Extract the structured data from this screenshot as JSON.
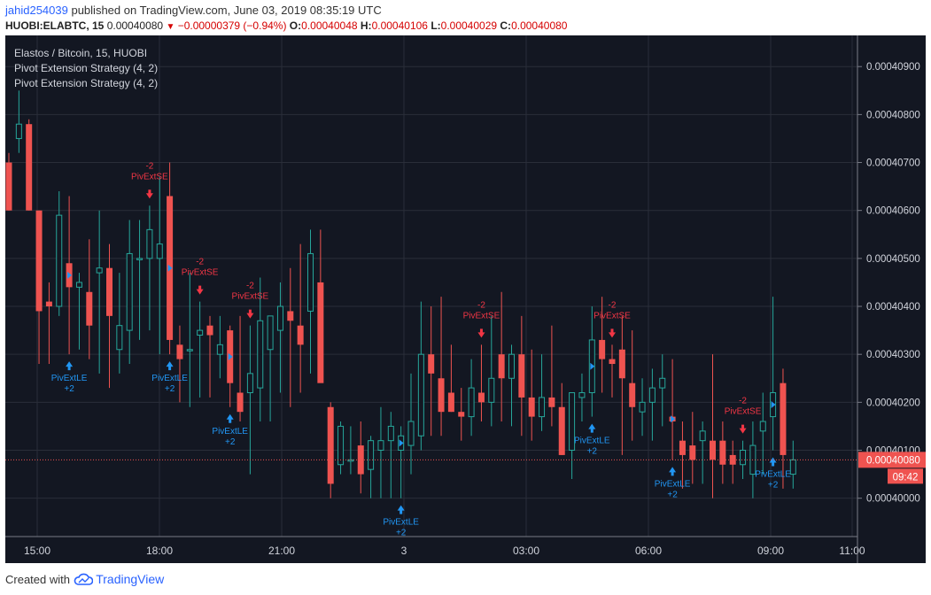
{
  "header": {
    "user": "jahid254039",
    "published": " published on TradingView.com, June 03, 2019 08:35:19 UTC",
    "symbol": "HUOBI:ELABTC, 15",
    "last": "0.00040080",
    "change": "−0.00000379 (−0.94%)",
    "o_label": "O:",
    "o": "0.00040048",
    "h_label": "H:",
    "h": "0.00040106",
    "l_label": "L:",
    "l": "0.00040029",
    "c_label": "C:",
    "c": "0.00040080"
  },
  "legend": {
    "title": "Elastos / Bitcoin, 15, HUOBI",
    "strategy1": "Pivot Extension Strategy (4, 2)",
    "strategy2": "Pivot Extension Strategy (4, 2)"
  },
  "price_label": "0.00040080",
  "countdown": "09:42",
  "footer": {
    "created": "Created with",
    "brand": "TradingView"
  },
  "colors": {
    "bg": "#131722",
    "grid": "#2a2e39",
    "up": "#26a69a",
    "down": "#ef5350",
    "long": "#2196f3",
    "short": "#f23645",
    "axis_text": "#d1d4dc"
  },
  "chart_data": {
    "type": "candlestick",
    "y_ticks": [
      "0.00040900",
      "0.00040800",
      "0.00040700",
      "0.00040600",
      "0.00040500",
      "0.00040400",
      "0.00040300",
      "0.00040200",
      "0.00040100",
      "0.00040000"
    ],
    "x_ticks": [
      "15:00",
      "18:00",
      "21:00",
      "3",
      "03:00",
      "06:00",
      "09:00",
      "11:00"
    ],
    "ylim": [
      0.0003992,
      0.00040965
    ],
    "current_price": 0.0004008,
    "candles": [
      [
        0.000407,
        0.0004072,
        0.000406,
        0.000406
      ],
      [
        0.0004075,
        0.0004085,
        0.0004072,
        0.0004078
      ],
      [
        0.0004078,
        0.0004079,
        0.000406,
        0.000406
      ],
      [
        0.000406,
        0.000406,
        0.0004028,
        0.0004039
      ],
      [
        0.0004041,
        0.0004045,
        0.0004028,
        0.000404
      ],
      [
        0.000404,
        0.0004064,
        0.0004038,
        0.0004059
      ],
      [
        0.0004049,
        0.0004063,
        0.000403,
        0.0004044
      ],
      [
        0.0004044,
        0.0004047,
        0.0004031,
        0.0004045
      ],
      [
        0.0004043,
        0.0004054,
        0.0004029,
        0.0004036
      ],
      [
        0.0004047,
        0.000406,
        0.0004026,
        0.0004048
      ],
      [
        0.0004048,
        0.0004053,
        0.0004023,
        0.0004038
      ],
      [
        0.0004031,
        0.0004047,
        0.0004026,
        0.0004036
      ],
      [
        0.0004035,
        0.0004058,
        0.0004028,
        0.0004051
      ],
      [
        0.000405,
        0.0004058,
        0.0004033,
        0.000405
      ],
      [
        0.000405,
        0.0004061,
        0.0004035,
        0.0004056
      ],
      [
        0.000405,
        0.0004067,
        0.000403,
        0.0004053
      ],
      [
        0.0004063,
        0.000407,
        0.000403,
        0.0004033
      ],
      [
        0.0004032,
        0.0004036,
        0.000402,
        0.0004029
      ],
      [
        0.0004031,
        0.0004047,
        0.0004019,
        0.0004031
      ],
      [
        0.0004034,
        0.0004041,
        0.0004021,
        0.0004035
      ],
      [
        0.0004036,
        0.0004038,
        0.0004021,
        0.0004034
      ],
      [
        0.000403,
        0.0004038,
        0.0004025,
        0.0004032
      ],
      [
        0.0004035,
        0.0004036,
        0.0004019,
        0.0004024
      ],
      [
        0.0004022,
        0.0004038,
        0.0004016,
        0.0004018
      ],
      [
        0.0004022,
        0.0004036,
        0.0004005,
        0.0004026
      ],
      [
        0.0004023,
        0.0004046,
        0.0004016,
        0.0004037
      ],
      [
        0.0004031,
        0.0004038,
        0.0004016,
        0.0004038
      ],
      [
        0.0004035,
        0.0004045,
        0.0004022,
        0.000404
      ],
      [
        0.0004039,
        0.0004048,
        0.0004019,
        0.0004037
      ],
      [
        0.0004036,
        0.0004053,
        0.0004022,
        0.0004032
      ],
      [
        0.0004039,
        0.0004056,
        0.0004026,
        0.0004051
      ],
      [
        0.0004045,
        0.0004056,
        0.0004025,
        0.0004024
      ],
      [
        0.0004019,
        0.000402,
        0.0004,
        0.0004003
      ],
      [
        0.0004007,
        0.0004016,
        0.0004005,
        0.0004015
      ],
      [
        0.0004008,
        0.0004015,
        0.0004005,
        0.0004008
      ],
      [
        0.0004011,
        0.0004016,
        0.0004001,
        0.0004005
      ],
      [
        0.0004006,
        0.0004013,
        0.0004,
        0.0004012
      ],
      [
        0.000401,
        0.0004019,
        0.0004,
        0.0004012
      ],
      [
        0.0004012,
        0.0004018,
        0.0004,
        0.0004015
      ],
      [
        0.000401,
        0.0004015,
        0.0004,
        0.0004013
      ],
      [
        0.0004011,
        0.0004026,
        0.0004005,
        0.0004016
      ],
      [
        0.0004013,
        0.0004041,
        0.000401,
        0.000403
      ],
      [
        0.000403,
        0.000404,
        0.0004013,
        0.0004026
      ],
      [
        0.0004025,
        0.0004042,
        0.0004013,
        0.0004018
      ],
      [
        0.0004022,
        0.0004032,
        0.0004018,
        0.0004018
      ],
      [
        0.0004018,
        0.0004023,
        0.0004012,
        0.0004017
      ],
      [
        0.0004017,
        0.0004029,
        0.0004013,
        0.0004023
      ],
      [
        0.0004022,
        0.0004032,
        0.0004016,
        0.000402
      ],
      [
        0.000402,
        0.0004038,
        0.0004015,
        0.0004025
      ],
      [
        0.000403,
        0.0004043,
        0.0004016,
        0.0004025
      ],
      [
        0.0004025,
        0.0004032,
        0.0004015,
        0.000403
      ],
      [
        0.000403,
        0.0004038,
        0.0004013,
        0.0004021
      ],
      [
        0.0004021,
        0.0004031,
        0.0004012,
        0.0004017
      ],
      [
        0.0004017,
        0.000403,
        0.0004014,
        0.0004021
      ],
      [
        0.0004021,
        0.0004036,
        0.0004015,
        0.0004019
      ],
      [
        0.0004019,
        0.0004024,
        0.0004009,
        0.0004009
      ],
      [
        0.000401,
        0.0004022,
        0.0004004,
        0.0004022
      ],
      [
        0.0004021,
        0.0004026,
        0.0004016,
        0.0004022
      ],
      [
        0.0004022,
        0.000404,
        0.0004017,
        0.0004033
      ],
      [
        0.0004033,
        0.0004042,
        0.0004022,
        0.0004029
      ],
      [
        0.0004029,
        0.0004032,
        0.0004021,
        0.0004028
      ],
      [
        0.0004031,
        0.0004038,
        0.0004009,
        0.0004025
      ],
      [
        0.0004024,
        0.0004035,
        0.0004012,
        0.0004019
      ],
      [
        0.0004018,
        0.0004025,
        0.0004013,
        0.000402
      ],
      [
        0.000402,
        0.0004027,
        0.0004012,
        0.0004023
      ],
      [
        0.0004023,
        0.000403,
        0.0004015,
        0.0004025
      ],
      [
        0.0004017,
        0.0004029,
        0.0004008,
        0.0004016
      ],
      [
        0.0004012,
        0.0004016,
        0.0004002,
        0.0004009
      ],
      [
        0.0004011,
        0.0004018,
        0.0004003,
        0.0004008
      ],
      [
        0.0004012,
        0.0004016,
        0.0004003,
        0.0004014
      ],
      [
        0.0004012,
        0.000403,
        0.0004,
        0.0004008
      ],
      [
        0.0004012,
        0.0004016,
        0.0004003,
        0.0004007
      ],
      [
        0.0004009,
        0.0004012,
        0.0004003,
        0.0004007
      ],
      [
        0.0004007,
        0.0004012,
        0.0004004,
        0.000401
      ],
      [
        0.0004005,
        0.0004016,
        0.0004,
        0.0004011
      ],
      [
        0.0004014,
        0.0004022,
        0.0004005,
        0.0004016
      ],
      [
        0.0004017,
        0.0004042,
        0.000401,
        0.0004022
      ],
      [
        0.0004024,
        0.0004027,
        0.0004002,
        0.0004009
      ],
      [
        0.0004005,
        0.0004012,
        0.0004002,
        0.0004008
      ]
    ],
    "long_signals": [
      {
        "i": 6,
        "label": "PivExtLE",
        "qty": "+2"
      },
      {
        "i": 16,
        "label": "PivExtLE",
        "qty": "+2"
      },
      {
        "i": 22,
        "label": "PivExtLE",
        "qty": "+2"
      },
      {
        "i": 39,
        "label": "PivExtLE",
        "qty": "+2"
      },
      {
        "i": 58,
        "label": "PivExtLE",
        "qty": "+2"
      },
      {
        "i": 66,
        "label": "PivExtLE",
        "qty": "+2"
      },
      {
        "i": 76,
        "label": "PivExtLE",
        "qty": "+2"
      }
    ],
    "short_signals": [
      {
        "i": 14,
        "label": "PivExtSE",
        "qty": "-2"
      },
      {
        "i": 19,
        "label": "PivExtSE",
        "qty": "-2"
      },
      {
        "i": 24,
        "label": "PivExtSE",
        "qty": "-2"
      },
      {
        "i": 47,
        "label": "PivExtSE",
        "qty": "-2"
      },
      {
        "i": 60,
        "label": "PivExtSE",
        "qty": "-2"
      },
      {
        "i": 73,
        "label": "PivExtSE",
        "qty": "-2"
      }
    ]
  }
}
